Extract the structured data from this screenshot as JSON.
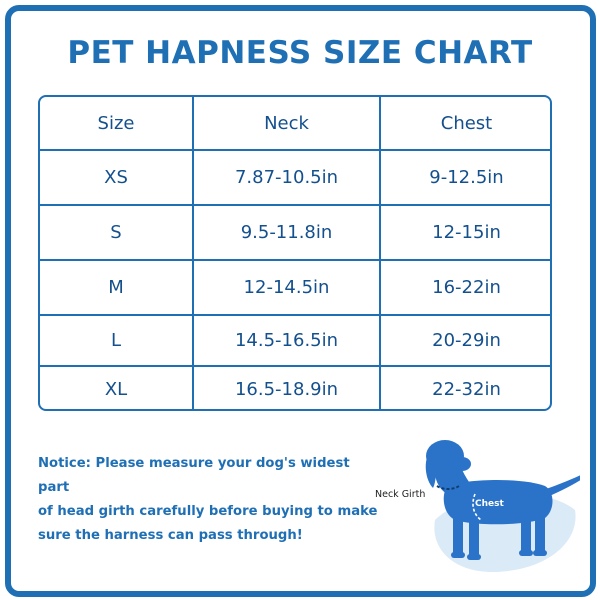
{
  "title": "PET HAPNESS SIZE CHART",
  "table": {
    "headers": [
      "Size",
      "Neck",
      "Chest"
    ],
    "rows": [
      [
        "XS",
        "7.87-10.5in",
        "9-12.5in"
      ],
      [
        "S",
        "9.5-11.8in",
        "12-15in"
      ],
      [
        "M",
        "12-14.5in",
        "16-22in"
      ],
      [
        "L",
        "14.5-16.5in",
        "20-29in"
      ],
      [
        "XL",
        "16.5-18.9in",
        "22-32in"
      ]
    ]
  },
  "notice": {
    "line1": "Notice: Please measure your dog's widest part",
    "line2": "of head girth carefully before buying to make",
    "line3": "sure the harness can pass through!"
  },
  "illustration": {
    "neck_label": "Neck Girth",
    "chest_label": "Chest"
  },
  "colors": {
    "brand_blue": "#1f6fb5",
    "text_blue": "#14508e",
    "dog_blue": "#2a73c8",
    "shadow_blue": "#dbeaf7"
  }
}
